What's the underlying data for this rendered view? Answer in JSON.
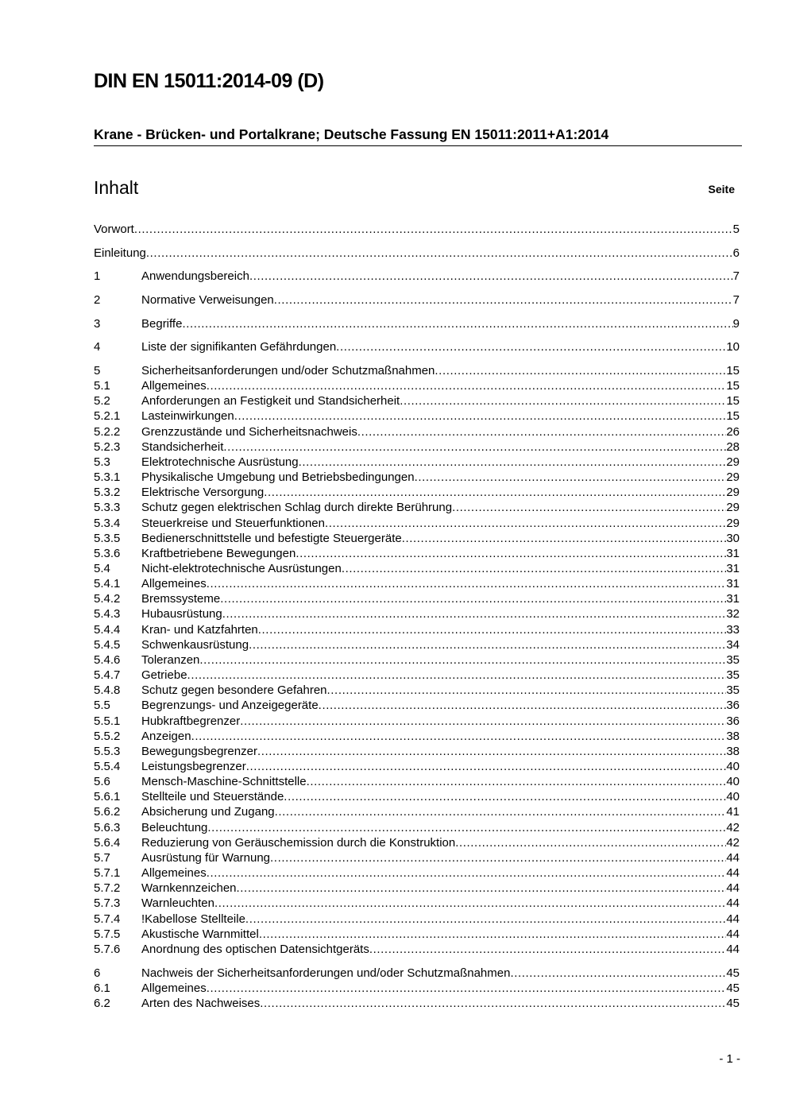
{
  "document": {
    "title": "DIN EN 15011:2014-09 (D)",
    "subtitle": "Krane - Brücken- und Portalkrane; Deutsche Fassung EN 15011:2011+A1:2014",
    "toc_heading": "Inhalt",
    "page_column_label": "Seite",
    "page_footer": "- 1 -"
  },
  "toc_groups": [
    [
      {
        "num": "",
        "title": "Vorwort",
        "page": "5"
      }
    ],
    [
      {
        "num": "",
        "title": "Einleitung",
        "page": "6"
      }
    ],
    [
      {
        "num": "1",
        "title": "Anwendungsbereich",
        "page": "7"
      }
    ],
    [
      {
        "num": "2",
        "title": "Normative Verweisungen",
        "page": "7"
      }
    ],
    [
      {
        "num": "3",
        "title": "Begriffe",
        "page": "9"
      }
    ],
    [
      {
        "num": "4",
        "title": "Liste der signifikanten Gefährdungen",
        "page": "10"
      }
    ],
    [
      {
        "num": "5",
        "title": "Sicherheitsanforderungen und/oder Schutzmaßnahmen",
        "page": "15"
      },
      {
        "num": "5.1",
        "title": "Allgemeines",
        "page": "15"
      },
      {
        "num": "5.2",
        "title": "Anforderungen an Festigkeit und Standsicherheit",
        "page": "15"
      },
      {
        "num": "5.2.1",
        "title": "Lasteinwirkungen",
        "page": "15"
      },
      {
        "num": "5.2.2",
        "title": "Grenzzustände und Sicherheitsnachweis",
        "page": "26"
      },
      {
        "num": "5.2.3",
        "title": "Standsicherheit",
        "page": "28"
      },
      {
        "num": "5.3",
        "title": "Elektrotechnische Ausrüstung",
        "page": "29"
      },
      {
        "num": "5.3.1",
        "title": "Physikalische Umgebung und Betriebsbedingungen",
        "page": "29"
      },
      {
        "num": "5.3.2",
        "title": "Elektrische Versorgung",
        "page": "29"
      },
      {
        "num": "5.3.3",
        "title": "Schutz gegen elektrischen Schlag durch direkte Berührung",
        "page": "29"
      },
      {
        "num": "5.3.4",
        "title": "Steuerkreise und Steuerfunktionen",
        "page": "29"
      },
      {
        "num": "5.3.5",
        "title": "Bedienerschnittstelle und befestigte Steuergeräte",
        "page": "30"
      },
      {
        "num": "5.3.6",
        "title": "Kraftbetriebene Bewegungen",
        "page": "31"
      },
      {
        "num": "5.4",
        "title": "Nicht-elektrotechnische Ausrüstungen",
        "page": "31"
      },
      {
        "num": "5.4.1",
        "title": "Allgemeines",
        "page": "31"
      },
      {
        "num": "5.4.2",
        "title": "Bremssysteme",
        "page": "31"
      },
      {
        "num": "5.4.3",
        "title": "Hubausrüstung",
        "page": "32"
      },
      {
        "num": "5.4.4",
        "title": "Kran- und Katzfahrten",
        "page": "33"
      },
      {
        "num": "5.4.5",
        "title": "Schwenkausrüstung",
        "page": "34"
      },
      {
        "num": "5.4.6",
        "title": "Toleranzen",
        "page": "35"
      },
      {
        "num": "5.4.7",
        "title": "Getriebe",
        "page": "35"
      },
      {
        "num": "5.4.8",
        "title": "Schutz gegen besondere Gefahren",
        "page": "35"
      },
      {
        "num": "5.5",
        "title": "Begrenzungs- und Anzeigegeräte",
        "page": "36"
      },
      {
        "num": "5.5.1",
        "title": "Hubkraftbegrenzer",
        "page": "36"
      },
      {
        "num": "5.5.2",
        "title": "Anzeigen",
        "page": "38"
      },
      {
        "num": "5.5.3",
        "title": "Bewegungsbegrenzer",
        "page": "38"
      },
      {
        "num": "5.5.4",
        "title": "Leistungsbegrenzer",
        "page": "40"
      },
      {
        "num": "5.6",
        "title": "Mensch-Maschine-Schnittstelle",
        "page": "40"
      },
      {
        "num": "5.6.1",
        "title": "Stellteile und Steuerstände",
        "page": "40"
      },
      {
        "num": "5.6.2",
        "title": "Absicherung und Zugang",
        "page": "41"
      },
      {
        "num": "5.6.3",
        "title": "Beleuchtung",
        "page": "42"
      },
      {
        "num": "5.6.4",
        "title": "Reduzierung von Geräuschemission durch die Konstruktion",
        "page": "42"
      },
      {
        "num": "5.7",
        "title": "Ausrüstung für Warnung",
        "page": "44"
      },
      {
        "num": "5.7.1",
        "title": "Allgemeines",
        "page": "44"
      },
      {
        "num": "5.7.2",
        "title": "Warnkennzeichen",
        "page": "44"
      },
      {
        "num": "5.7.3",
        "title": "Warnleuchten",
        "page": "44"
      },
      {
        "num": "5.7.4",
        "title": "!Kabellose Stellteile",
        "page": "44"
      },
      {
        "num": "5.7.5",
        "title": "Akustische Warnmittel",
        "page": "44"
      },
      {
        "num": "5.7.6",
        "title": "Anordnung des optischen Datensichtgeräts",
        "page": "44"
      }
    ],
    [
      {
        "num": "6",
        "title": "Nachweis der Sicherheitsanforderungen und/oder Schutzmaßnahmen",
        "page": "45"
      },
      {
        "num": "6.1",
        "title": "Allgemeines",
        "page": "45"
      },
      {
        "num": "6.2",
        "title": "Arten des Nachweises",
        "page": "45"
      }
    ]
  ]
}
